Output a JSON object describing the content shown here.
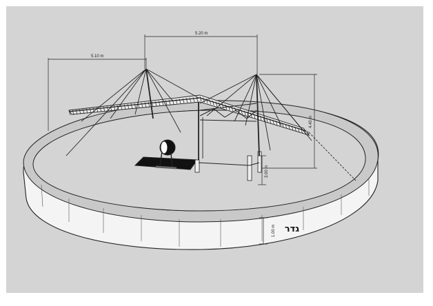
{
  "dimensions": {
    "span_left": "5.10 m",
    "span_right": "5.20 m",
    "mast_height": "4.40 m",
    "frame_height": "3.00 m",
    "wall_height": "1.00 m"
  },
  "labels": {
    "fence": "גדר"
  },
  "colors": {
    "background": "#d4d4d4",
    "wall_top": "#c9c9c9",
    "wall_face": "#f4f4f4",
    "structure": "#333333"
  }
}
